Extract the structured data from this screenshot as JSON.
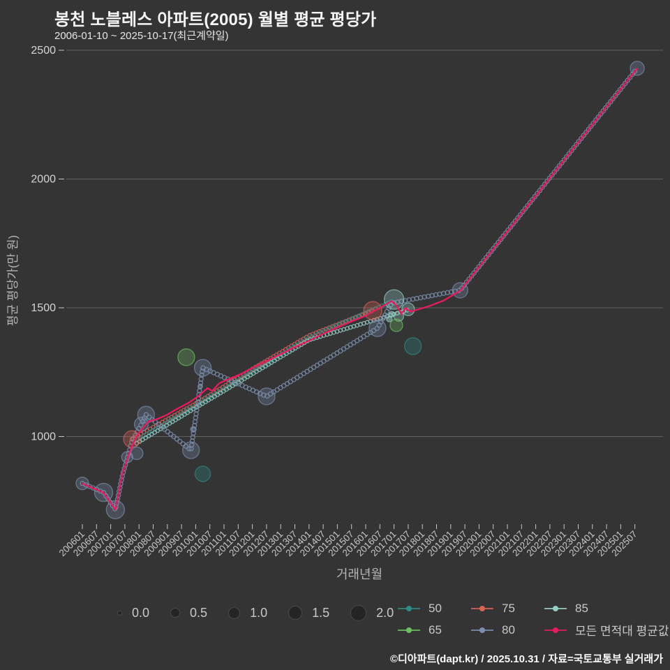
{
  "title": "봉천 노블레스 아파트(2005) 월별 평균 평당가",
  "subtitle": "2006-01-10 ~ 2025-10-17(최근계약일)",
  "footer": "©디아파트(dapt.kr) / 2025.10.31 / 자료=국토교통부 실거래가",
  "colors": {
    "background": "#343434",
    "grid": "#8e8e8e",
    "tick_text": "#c7c7c7",
    "axis_title_text": "#b5b5b5",
    "title_text": "#f5f5f5",
    "size_dot": "#242424",
    "series_50": "#2e8b85",
    "series_65": "#6cc063",
    "series_75": "#dc6257",
    "series_80": "#7b90ae",
    "series_85": "#96cec6",
    "series_avg": "#ea1a5e"
  },
  "size_legend": {
    "labels": [
      "0.0",
      "0.5",
      "1.0",
      "1.5",
      "2.0"
    ],
    "diameters": [
      5,
      12,
      15,
      18,
      21
    ]
  },
  "series_legend": {
    "row1": [
      "50",
      "75",
      "85"
    ],
    "row2": [
      "65",
      "80",
      "모든 면적대 평균값"
    ]
  },
  "chart_data": {
    "type": "scatter",
    "title": "봉천 노블레스 아파트(2005) 월별 평균 평당가",
    "xlabel": "거래년월",
    "ylabel": "평균 평당가(만 원)",
    "ylim": [
      630,
      2510
    ],
    "y_ticks": [
      2500,
      2000,
      1500,
      1000
    ],
    "x_ticks": [
      "200601",
      "200607",
      "200701",
      "200707",
      "200801",
      "200807",
      "200901",
      "200907",
      "201001",
      "201007",
      "201101",
      "201107",
      "201201",
      "201207",
      "201301",
      "201307",
      "201401",
      "201407",
      "201501",
      "201507",
      "201601",
      "201607",
      "201701",
      "201707",
      "201801",
      "201807",
      "201901",
      "201907",
      "202001",
      "202007",
      "202101",
      "202107",
      "202201",
      "202207",
      "202301",
      "202307",
      "202401",
      "202407",
      "202501",
      "202507"
    ],
    "legend_note": "bubble size legend 0.0–2.0; color legend = 면적대(㎡)",
    "series": [
      {
        "name": "75",
        "colorKey": "series_75",
        "style": "beads",
        "points": [
          [
            "200710",
            990
          ],
          [
            "201001",
            1128
          ],
          [
            "201201",
            1262
          ],
          [
            "201401",
            1392
          ],
          [
            "201604",
            1489
          ]
        ],
        "bubbles": [
          [
            "200710",
            990,
            12
          ],
          [
            "201604",
            1489,
            13
          ]
        ]
      },
      {
        "name": "50",
        "colorKey": "series_50",
        "style": "beads",
        "points": [
          [
            "200711",
            982
          ],
          [
            "201001",
            1120
          ],
          [
            "201201",
            1252
          ],
          [
            "201401",
            1384
          ],
          [
            "201612",
            1524
          ]
        ],
        "bubbles": [
          [
            "201004",
            855,
            11
          ],
          [
            "201709",
            1351,
            12
          ]
        ]
      },
      {
        "name": "85",
        "colorKey": "series_85",
        "style": "beads",
        "points": [
          [
            "200712",
            974
          ],
          [
            "201001",
            1112
          ],
          [
            "201201",
            1243
          ],
          [
            "201401",
            1375
          ],
          [
            "201707",
            1492
          ]
        ],
        "bubbles": [
          [
            "201701",
            1532,
            14
          ],
          [
            "201707",
            1494,
            9
          ],
          [
            "201703",
            1467,
            7
          ],
          [
            "201612",
            1475,
            4
          ],
          [
            "201611",
            1456,
            4
          ]
        ]
      },
      {
        "name": "65",
        "colorKey": "series_65",
        "style": "scatter",
        "points": [],
        "bubbles": [
          [
            "200909",
            1308,
            12
          ],
          [
            "201702",
            1432,
            9
          ]
        ]
      },
      {
        "name": "80",
        "colorKey": "series_80",
        "style": "beads",
        "points": [
          [
            "200601",
            818
          ],
          [
            "200610",
            783
          ],
          [
            "200703",
            716
          ],
          [
            "200706",
            850
          ],
          [
            "200710",
            980
          ],
          [
            "200802",
            1048
          ],
          [
            "200804",
            1085
          ],
          [
            "200911",
            947
          ],
          [
            "201004",
            1267
          ],
          [
            "201207",
            1156
          ],
          [
            "201606",
            1421
          ],
          [
            "201612",
            1518
          ],
          [
            "201905",
            1568
          ],
          [
            "202508",
            2430
          ]
        ],
        "bubbles": [
          [
            "200601",
            818,
            9
          ],
          [
            "200610",
            783,
            13
          ],
          [
            "200703",
            716,
            13
          ],
          [
            "200708",
            920,
            8
          ],
          [
            "200712",
            935,
            9
          ],
          [
            "200802",
            1048,
            10
          ],
          [
            "200804",
            1085,
            12
          ],
          [
            "200911",
            947,
            12
          ],
          [
            "200912",
            1028,
            4
          ],
          [
            "201003",
            1196,
            3
          ],
          [
            "201004",
            1267,
            12
          ],
          [
            "201207",
            1156,
            12
          ],
          [
            "201606",
            1421,
            12
          ],
          [
            "201905",
            1568,
            11
          ],
          [
            "202508",
            2430,
            10
          ]
        ]
      },
      {
        "name": "모든 면적대 평균값",
        "colorKey": "series_avg",
        "style": "line",
        "points": [
          [
            "200601",
            818
          ],
          [
            "200610",
            782
          ],
          [
            "200703",
            716
          ],
          [
            "200706",
            857
          ],
          [
            "200709",
            938
          ],
          [
            "200711",
            982
          ],
          [
            "200801",
            1015
          ],
          [
            "200803",
            1037
          ],
          [
            "200805",
            1058
          ],
          [
            "200809",
            1069
          ],
          [
            "200901",
            1085
          ],
          [
            "200905",
            1107
          ],
          [
            "200910",
            1131
          ],
          [
            "201002",
            1156
          ],
          [
            "201004",
            1172
          ],
          [
            "201006",
            1188
          ],
          [
            "201008",
            1177
          ],
          [
            "201011",
            1207
          ],
          [
            "201103",
            1223
          ],
          [
            "201108",
            1242
          ],
          [
            "201201",
            1266
          ],
          [
            "201207",
            1293
          ],
          [
            "201301",
            1320
          ],
          [
            "201307",
            1347
          ],
          [
            "201401",
            1372
          ],
          [
            "201407",
            1399
          ],
          [
            "201501",
            1423
          ],
          [
            "201507",
            1447
          ],
          [
            "201601",
            1469
          ],
          [
            "201604",
            1485
          ],
          [
            "201609",
            1510
          ],
          [
            "201612",
            1526
          ],
          [
            "201702",
            1510
          ],
          [
            "201704",
            1477
          ],
          [
            "201706",
            1499
          ],
          [
            "201708",
            1485
          ],
          [
            "201711",
            1493
          ],
          [
            "201804",
            1507
          ],
          [
            "201810",
            1528
          ],
          [
            "201902",
            1550
          ],
          [
            "201905",
            1566
          ],
          [
            "202508",
            2430
          ]
        ],
        "bubbles": []
      }
    ]
  }
}
